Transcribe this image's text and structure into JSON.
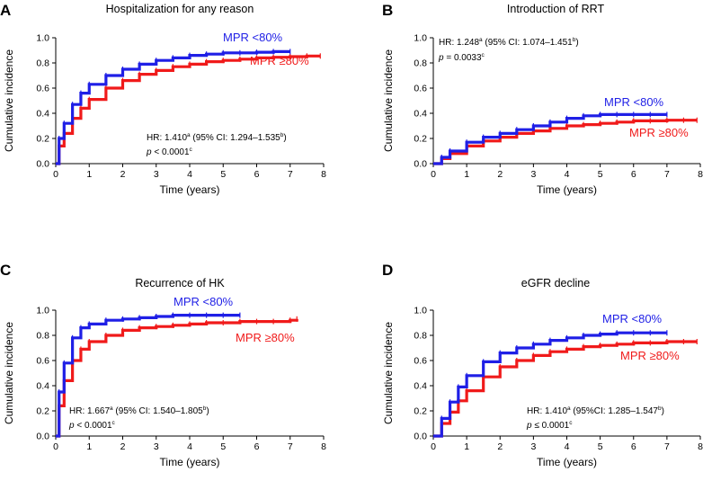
{
  "colors": {
    "mpr_low": "#1f1fe6",
    "mpr_high": "#f01a1a",
    "axis": "#000000"
  },
  "chart_data": [
    {
      "type": "line",
      "panel": "A",
      "title": "Hospitalization for any reason",
      "xlabel": "Time (years)",
      "ylabel": "Cumulative incidence",
      "xlim": [
        0,
        8
      ],
      "ylim": [
        0,
        1.0
      ],
      "xticks": [
        "0",
        "1",
        "2",
        "3",
        "4",
        "5",
        "6",
        "7",
        "8"
      ],
      "yticks": [
        "0.0",
        "0.2",
        "0.4",
        "0.6",
        "0.8",
        "1.0"
      ],
      "series": [
        {
          "name": "MPR <80%",
          "color": "#1f1fe6",
          "x": [
            0,
            0.1,
            0.25,
            0.5,
            0.75,
            1,
            1.5,
            2,
            2.5,
            3,
            3.5,
            4,
            4.5,
            5,
            5.5,
            6,
            6.5,
            7
          ],
          "y": [
            0,
            0.2,
            0.32,
            0.47,
            0.56,
            0.63,
            0.7,
            0.75,
            0.79,
            0.82,
            0.84,
            0.86,
            0.87,
            0.88,
            0.88,
            0.885,
            0.89,
            0.89
          ]
        },
        {
          "name": "MPR ≥80%",
          "color": "#f01a1a",
          "x": [
            0,
            0.1,
            0.25,
            0.5,
            0.75,
            1,
            1.5,
            2,
            2.5,
            3,
            3.5,
            4,
            4.5,
            5,
            5.5,
            6,
            6.5,
            7,
            7.5,
            7.9
          ],
          "y": [
            0,
            0.14,
            0.24,
            0.36,
            0.44,
            0.51,
            0.6,
            0.66,
            0.71,
            0.74,
            0.77,
            0.79,
            0.81,
            0.82,
            0.83,
            0.84,
            0.845,
            0.85,
            0.855,
            0.855
          ]
        }
      ],
      "stats": {
        "hr_prefix": "HR: 1.410",
        "hr_mid": " (95% CI: 1.294–1.535",
        "hr_end": ")",
        "p_prefix": "p",
        "p_text": " < 0.0001",
        "sup_a": "a",
        "sup_b": "b",
        "sup_c": "c"
      }
    },
    {
      "type": "line",
      "panel": "B",
      "title": "Introduction of RRT",
      "xlabel": "Time (years)",
      "ylabel": "Cumulative incidence",
      "xlim": [
        0,
        8
      ],
      "ylim": [
        0,
        1.0
      ],
      "xticks": [
        "0",
        "1",
        "2",
        "3",
        "4",
        "5",
        "6",
        "7",
        "8"
      ],
      "yticks": [
        "0.0",
        "0.2",
        "0.4",
        "0.6",
        "0.8",
        "1.0"
      ],
      "series": [
        {
          "name": "MPR <80%",
          "color": "#1f1fe6",
          "x": [
            0,
            0.25,
            0.5,
            1,
            1.5,
            2,
            2.5,
            3,
            3.5,
            4,
            4.5,
            5,
            5.5,
            6,
            6.5,
            7
          ],
          "y": [
            0,
            0.05,
            0.1,
            0.17,
            0.21,
            0.24,
            0.27,
            0.3,
            0.33,
            0.36,
            0.38,
            0.39,
            0.39,
            0.39,
            0.39,
            0.39
          ]
        },
        {
          "name": "MPR ≥80%",
          "color": "#f01a1a",
          "x": [
            0,
            0.25,
            0.5,
            1,
            1.5,
            2,
            2.5,
            3,
            3.5,
            4,
            4.5,
            5,
            5.5,
            6,
            6.5,
            7,
            7.5,
            7.9
          ],
          "y": [
            0,
            0.04,
            0.08,
            0.14,
            0.18,
            0.21,
            0.24,
            0.26,
            0.28,
            0.3,
            0.31,
            0.32,
            0.33,
            0.34,
            0.34,
            0.345,
            0.345,
            0.345
          ]
        }
      ],
      "stats": {
        "hr_prefix": "HR: 1.248",
        "hr_mid": " (95% CI: 1.074–1.451",
        "hr_end": ")",
        "p_prefix": "p",
        "p_text": " = 0.0033",
        "sup_a": "a",
        "sup_b": "b",
        "sup_c": "c"
      }
    },
    {
      "type": "line",
      "panel": "C",
      "title": "Recurrence of HK",
      "xlabel": "Time (years)",
      "ylabel": "Cumulative incidence",
      "xlim": [
        0,
        8
      ],
      "ylim": [
        0,
        1.0
      ],
      "xticks": [
        "0",
        "1",
        "2",
        "3",
        "4",
        "5",
        "6",
        "7",
        "8"
      ],
      "yticks": [
        "0.0",
        "0.2",
        "0.4",
        "0.6",
        "0.8",
        "1.0"
      ],
      "series": [
        {
          "name": "MPR <80%",
          "color": "#1f1fe6",
          "x": [
            0,
            0.1,
            0.25,
            0.5,
            0.75,
            1,
            1.5,
            2,
            2.5,
            3,
            3.5,
            4,
            4.5,
            5,
            5.5
          ],
          "y": [
            0,
            0.35,
            0.58,
            0.78,
            0.86,
            0.89,
            0.92,
            0.93,
            0.94,
            0.95,
            0.96,
            0.96,
            0.96,
            0.96,
            0.96
          ]
        },
        {
          "name": "MPR ≥80%",
          "color": "#f01a1a",
          "x": [
            0,
            0.1,
            0.25,
            0.5,
            0.75,
            1,
            1.5,
            2,
            2.5,
            3,
            3.5,
            4,
            4.5,
            5,
            5.5,
            6,
            6.5,
            7,
            7.2
          ],
          "y": [
            0,
            0.24,
            0.44,
            0.6,
            0.69,
            0.75,
            0.8,
            0.84,
            0.86,
            0.87,
            0.88,
            0.89,
            0.9,
            0.9,
            0.91,
            0.91,
            0.91,
            0.92,
            0.93
          ]
        }
      ],
      "stats": {
        "hr_prefix": "HR: 1.667",
        "hr_mid": " (95% CI: 1.540–1.805",
        "hr_end": ")",
        "p_prefix": "p",
        "p_text": " < 0.0001",
        "sup_a": "a",
        "sup_b": "b",
        "sup_c": "c"
      }
    },
    {
      "type": "line",
      "panel": "D",
      "title": "eGFR decline",
      "xlabel": "Time (years)",
      "ylabel": "Cumulative incidence",
      "xlim": [
        0,
        8
      ],
      "ylim": [
        0,
        1.0
      ],
      "xticks": [
        "0",
        "1",
        "2",
        "3",
        "4",
        "5",
        "6",
        "7",
        "8"
      ],
      "yticks": [
        "0.0",
        "0.2",
        "0.4",
        "0.6",
        "0.8",
        "1.0"
      ],
      "series": [
        {
          "name": "MPR <80%",
          "color": "#1f1fe6",
          "x": [
            0,
            0.25,
            0.5,
            0.75,
            1,
            1.5,
            2,
            2.5,
            3,
            3.5,
            4,
            4.5,
            5,
            5.5,
            6,
            6.5,
            7
          ],
          "y": [
            0,
            0.14,
            0.27,
            0.39,
            0.48,
            0.59,
            0.66,
            0.7,
            0.73,
            0.76,
            0.78,
            0.8,
            0.81,
            0.82,
            0.82,
            0.82,
            0.82
          ]
        },
        {
          "name": "MPR ≥80%",
          "color": "#f01a1a",
          "x": [
            0,
            0.25,
            0.5,
            0.75,
            1,
            1.5,
            2,
            2.5,
            3,
            3.5,
            4,
            4.5,
            5,
            5.5,
            6,
            6.5,
            7,
            7.5,
            7.9
          ],
          "y": [
            0,
            0.1,
            0.19,
            0.28,
            0.36,
            0.47,
            0.55,
            0.6,
            0.64,
            0.67,
            0.69,
            0.71,
            0.72,
            0.73,
            0.74,
            0.74,
            0.75,
            0.75,
            0.75
          ]
        }
      ],
      "stats": {
        "hr_prefix": "HR: 1.410",
        "hr_mid": " (95%CI: 1.285–1.547",
        "hr_end": ")",
        "p_prefix": "p",
        "p_text": " ≤ 0.0001",
        "sup_a": "a",
        "sup_b": "b",
        "sup_c": "c"
      }
    }
  ]
}
